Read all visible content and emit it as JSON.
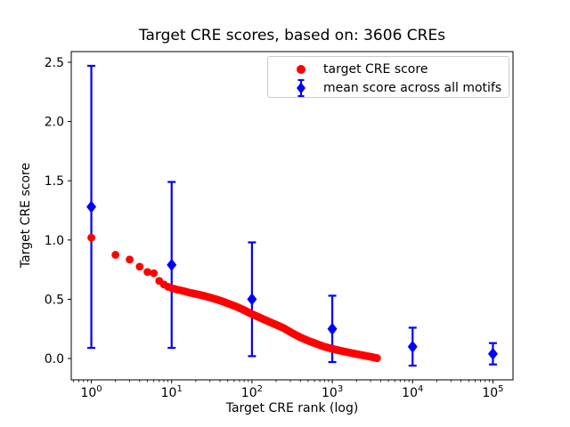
{
  "figure": {
    "background": "#ffffff"
  },
  "chart_data": {
    "type": "scatter",
    "title": "Target CRE scores, based on: 3606 CREs",
    "xlabel": "Target CRE rank (log)",
    "ylabel": "Target CRE score",
    "x_scale": "log",
    "x_log10_range": [
      -0.25,
      5.25
    ],
    "ylim": [
      -0.18,
      2.59
    ],
    "x_tick_exponents": [
      0,
      1,
      2,
      3,
      4,
      5
    ],
    "y_ticks": [
      0.0,
      0.5,
      1.0,
      1.5,
      2.0,
      2.5
    ],
    "grid": false,
    "legend_position": "upper right",
    "colors": {
      "target_series": "#ff0000",
      "mean_series": "#0000ff",
      "axis": "#000000",
      "legend_border": "#cccccc"
    },
    "series": [
      {
        "name": "target CRE score",
        "marker": "circle",
        "color": "#ff0000",
        "note": "score vs rank for every CRE rank 1..3606; anchor points read from the curve, markers drawn densely between anchors",
        "max_rank": 3606,
        "points": [
          [
            1,
            1.02
          ],
          [
            2,
            0.875
          ],
          [
            3,
            0.835
          ],
          [
            4,
            0.775
          ],
          [
            5,
            0.73
          ],
          [
            6,
            0.72
          ],
          [
            7,
            0.655
          ],
          [
            8,
            0.625
          ],
          [
            9,
            0.605
          ],
          [
            10,
            0.595
          ],
          [
            12,
            0.58
          ],
          [
            14,
            0.57
          ],
          [
            17,
            0.555
          ],
          [
            20,
            0.545
          ],
          [
            25,
            0.53
          ],
          [
            32,
            0.51
          ],
          [
            40,
            0.49
          ],
          [
            50,
            0.465
          ],
          [
            63,
            0.44
          ],
          [
            79,
            0.41
          ],
          [
            100,
            0.375
          ],
          [
            126,
            0.345
          ],
          [
            158,
            0.315
          ],
          [
            200,
            0.285
          ],
          [
            251,
            0.255
          ],
          [
            316,
            0.215
          ],
          [
            398,
            0.18
          ],
          [
            501,
            0.15
          ],
          [
            631,
            0.125
          ],
          [
            794,
            0.1
          ],
          [
            1000,
            0.082
          ],
          [
            1259,
            0.066
          ],
          [
            1585,
            0.052
          ],
          [
            1995,
            0.038
          ],
          [
            2512,
            0.025
          ],
          [
            3162,
            0.012
          ],
          [
            3606,
            0.003
          ]
        ]
      },
      {
        "name": "mean score across all motifs",
        "marker": "diamond",
        "color": "#0000ff",
        "points": [
          {
            "x": 1,
            "y": 1.28,
            "err": 1.19
          },
          {
            "x": 10,
            "y": 0.79,
            "err": 0.7
          },
          {
            "x": 100,
            "y": 0.5,
            "err": 0.48
          },
          {
            "x": 1000,
            "y": 0.25,
            "err": 0.28
          },
          {
            "x": 10000,
            "y": 0.1,
            "err": 0.16
          },
          {
            "x": 100000,
            "y": 0.04,
            "err": 0.09
          }
        ]
      }
    ]
  }
}
